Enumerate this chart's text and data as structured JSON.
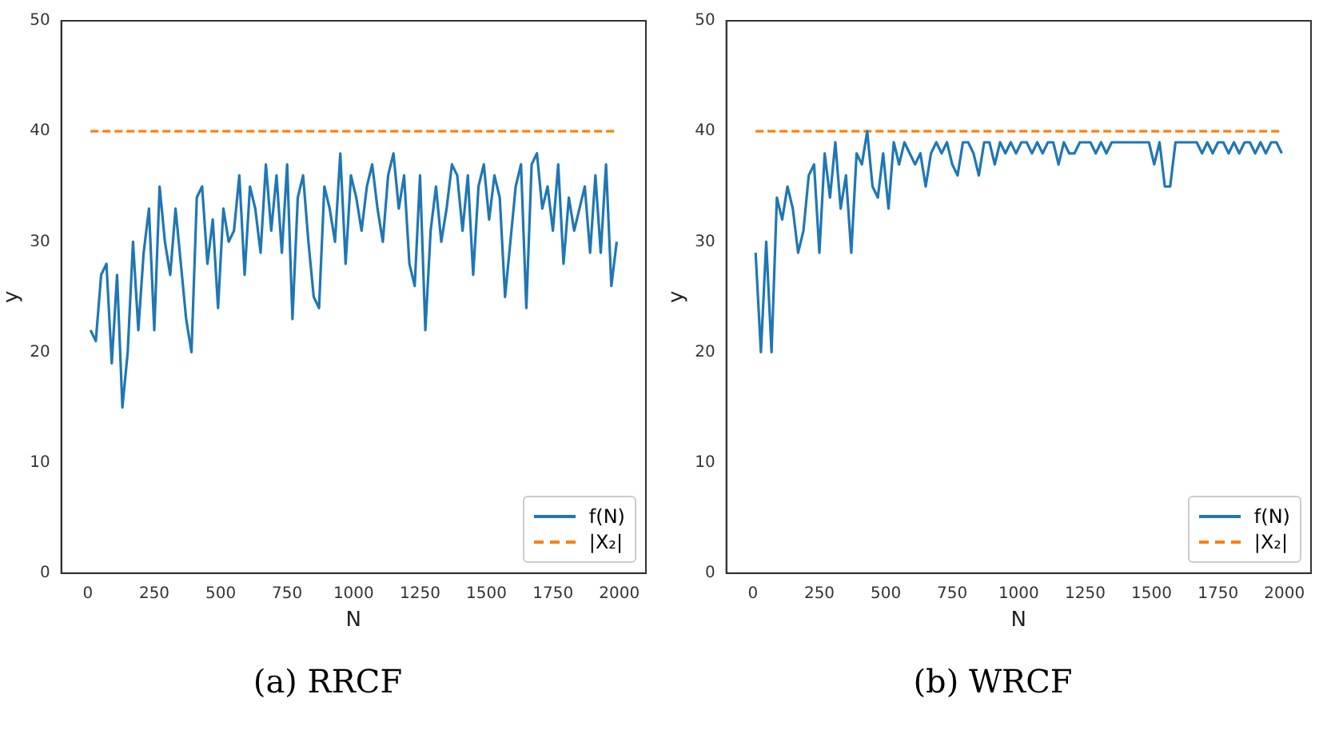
{
  "chart_data": [
    {
      "type": "line",
      "xlabel": "N",
      "ylabel": "y",
      "xlim": [
        -100,
        2100
      ],
      "xticks": [
        0,
        250,
        500,
        750,
        1000,
        1250,
        1500,
        1750,
        2000
      ],
      "ylim": [
        0,
        50
      ],
      "yticks": [
        0,
        10,
        20,
        30,
        40,
        50
      ],
      "grid": false,
      "legend": "bottom right",
      "annotations": [
        "(a) RRCF"
      ],
      "x": [
        10,
        30,
        50,
        70,
        90,
        110,
        130,
        150,
        170,
        190,
        210,
        230,
        250,
        270,
        290,
        310,
        330,
        350,
        370,
        390,
        410,
        430,
        450,
        470,
        490,
        510,
        530,
        550,
        570,
        590,
        610,
        630,
        650,
        670,
        690,
        710,
        730,
        750,
        770,
        790,
        810,
        830,
        850,
        870,
        890,
        910,
        930,
        950,
        970,
        990,
        1010,
        1030,
        1050,
        1070,
        1090,
        1110,
        1130,
        1150,
        1170,
        1190,
        1210,
        1230,
        1250,
        1270,
        1290,
        1310,
        1330,
        1350,
        1370,
        1390,
        1410,
        1430,
        1450,
        1470,
        1490,
        1510,
        1530,
        1550,
        1570,
        1590,
        1610,
        1630,
        1650,
        1670,
        1690,
        1710,
        1730,
        1750,
        1770,
        1790,
        1810,
        1830,
        1850,
        1870,
        1890,
        1910,
        1930,
        1950,
        1970,
        1990
      ],
      "series": [
        {
          "name": "f(N)",
          "color": "#1f77b4",
          "line_style": "solid",
          "values": [
            22,
            21,
            27,
            28,
            19,
            27,
            15,
            20,
            30,
            22,
            29,
            33,
            22,
            35,
            30,
            27,
            33,
            28,
            23,
            20,
            34,
            35,
            28,
            32,
            24,
            33,
            30,
            31,
            36,
            27,
            35,
            33,
            29,
            37,
            31,
            36,
            29,
            37,
            23,
            34,
            36,
            30,
            25,
            24,
            35,
            33,
            30,
            38,
            28,
            36,
            34,
            31,
            35,
            37,
            33,
            30,
            36,
            38,
            33,
            36,
            28,
            26,
            36,
            22,
            31,
            35,
            30,
            33,
            37,
            36,
            31,
            36,
            27,
            35,
            37,
            32,
            36,
            34,
            25,
            30,
            35,
            37,
            24,
            37,
            38,
            33,
            35,
            31,
            37,
            28,
            34,
            31,
            33,
            35,
            29,
            36,
            29,
            37,
            26,
            30
          ]
        },
        {
          "name": "|X₂|",
          "color": "#ff7f0e",
          "line_style": "dashed",
          "values": [
            40,
            40,
            40,
            40,
            40,
            40,
            40,
            40,
            40,
            40,
            40,
            40,
            40,
            40,
            40,
            40,
            40,
            40,
            40,
            40,
            40,
            40,
            40,
            40,
            40,
            40,
            40,
            40,
            40,
            40,
            40,
            40,
            40,
            40,
            40,
            40,
            40,
            40,
            40,
            40,
            40,
            40,
            40,
            40,
            40,
            40,
            40,
            40,
            40,
            40,
            40,
            40,
            40,
            40,
            40,
            40,
            40,
            40,
            40,
            40,
            40,
            40,
            40,
            40,
            40,
            40,
            40,
            40,
            40,
            40,
            40,
            40,
            40,
            40,
            40,
            40,
            40,
            40,
            40,
            40,
            40,
            40,
            40,
            40,
            40,
            40,
            40,
            40,
            40,
            40,
            40,
            40,
            40,
            40,
            40,
            40,
            40,
            40,
            40,
            40
          ]
        }
      ]
    },
    {
      "type": "line",
      "xlabel": "N",
      "ylabel": "y",
      "xlim": [
        -100,
        2100
      ],
      "xticks": [
        0,
        250,
        500,
        750,
        1000,
        1250,
        1500,
        1750,
        2000
      ],
      "ylim": [
        0,
        50
      ],
      "yticks": [
        0,
        10,
        20,
        30,
        40,
        50
      ],
      "grid": false,
      "legend": "bottom right",
      "annotations": [
        "(b) WRCF"
      ],
      "x": [
        10,
        30,
        50,
        70,
        90,
        110,
        130,
        150,
        170,
        190,
        210,
        230,
        250,
        270,
        290,
        310,
        330,
        350,
        370,
        390,
        410,
        430,
        450,
        470,
        490,
        510,
        530,
        550,
        570,
        590,
        610,
        630,
        650,
        670,
        690,
        710,
        730,
        750,
        770,
        790,
        810,
        830,
        850,
        870,
        890,
        910,
        930,
        950,
        970,
        990,
        1010,
        1030,
        1050,
        1070,
        1090,
        1110,
        1130,
        1150,
        1170,
        1190,
        1210,
        1230,
        1250,
        1270,
        1290,
        1310,
        1330,
        1350,
        1370,
        1390,
        1410,
        1430,
        1450,
        1470,
        1490,
        1510,
        1530,
        1550,
        1570,
        1590,
        1610,
        1630,
        1650,
        1670,
        1690,
        1710,
        1730,
        1750,
        1770,
        1790,
        1810,
        1830,
        1850,
        1870,
        1890,
        1910,
        1930,
        1950,
        1970,
        1990
      ],
      "series": [
        {
          "name": "f(N)",
          "color": "#1f77b4",
          "line_style": "solid",
          "values": [
            29,
            20,
            30,
            20,
            34,
            32,
            35,
            33,
            29,
            31,
            36,
            37,
            29,
            38,
            34,
            39,
            33,
            36,
            29,
            38,
            37,
            40,
            35,
            34,
            38,
            33,
            39,
            37,
            39,
            38,
            37,
            38,
            35,
            38,
            39,
            38,
            39,
            37,
            36,
            39,
            39,
            38,
            36,
            39,
            39,
            37,
            39,
            38,
            39,
            38,
            39,
            39,
            38,
            39,
            38,
            39,
            39,
            37,
            39,
            38,
            38,
            39,
            39,
            39,
            38,
            39,
            38,
            39,
            39,
            39,
            39,
            39,
            39,
            39,
            39,
            37,
            39,
            35,
            35,
            39,
            39,
            39,
            39,
            39,
            38,
            39,
            38,
            39,
            39,
            38,
            39,
            38,
            39,
            39,
            38,
            39,
            38,
            39,
            39,
            38
          ]
        },
        {
          "name": "|X₂|",
          "color": "#ff7f0e",
          "line_style": "dashed",
          "values": [
            40,
            40,
            40,
            40,
            40,
            40,
            40,
            40,
            40,
            40,
            40,
            40,
            40,
            40,
            40,
            40,
            40,
            40,
            40,
            40,
            40,
            40,
            40,
            40,
            40,
            40,
            40,
            40,
            40,
            40,
            40,
            40,
            40,
            40,
            40,
            40,
            40,
            40,
            40,
            40,
            40,
            40,
            40,
            40,
            40,
            40,
            40,
            40,
            40,
            40,
            40,
            40,
            40,
            40,
            40,
            40,
            40,
            40,
            40,
            40,
            40,
            40,
            40,
            40,
            40,
            40,
            40,
            40,
            40,
            40,
            40,
            40,
            40,
            40,
            40,
            40,
            40,
            40,
            40,
            40,
            40,
            40,
            40,
            40,
            40,
            40,
            40,
            40,
            40,
            40,
            40,
            40,
            40,
            40,
            40,
            40,
            40,
            40,
            40,
            40
          ]
        }
      ]
    }
  ]
}
